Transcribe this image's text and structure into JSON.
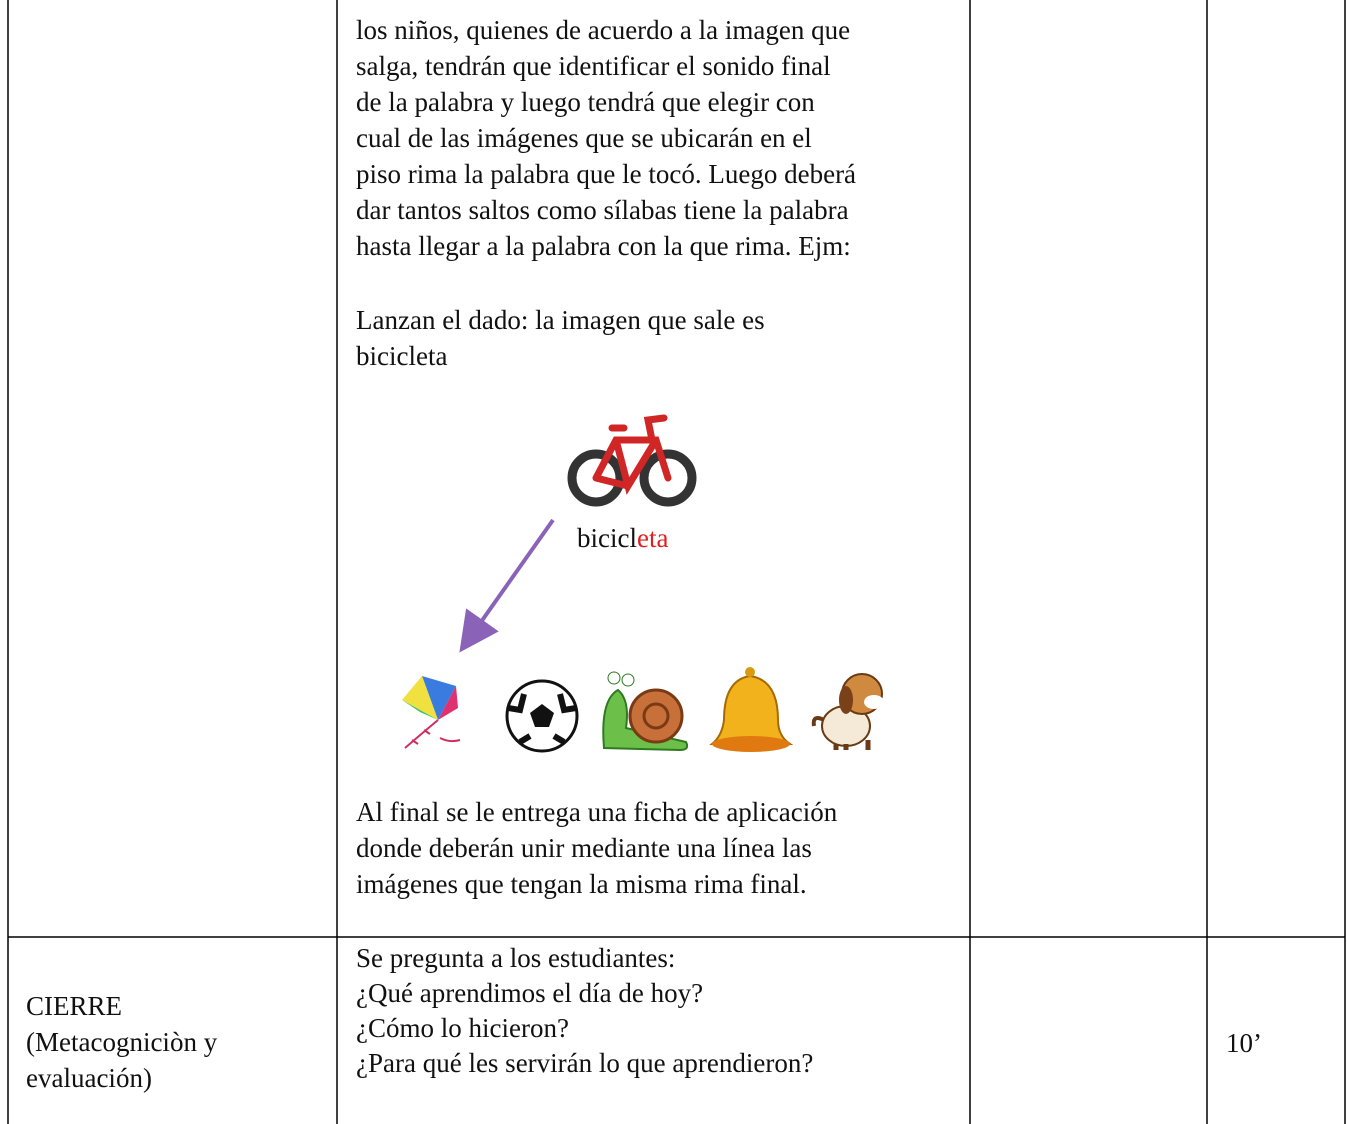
{
  "table": {
    "rows": [
      {
        "activity": {
          "lines_before": [
            "los niños, quienes de acuerdo a la imagen que",
            "salga, tendrán que identificar el sonido final",
            "de la palabra y luego tendrá que elegir con",
            "cual de las imágenes que se ubicarán en el",
            "piso rima la palabra que le tocó. Luego deberá",
            "dar tantos saltos como sílabas tiene la palabra",
            "hasta llegar a la palabra con la que rima. Ejm:"
          ],
          "example_lines": [
            "Lanzan el dado: la imagen que sale es",
            "bicicleta"
          ],
          "figure_label": {
            "stem": "bicicl",
            "ending": "eta"
          },
          "lines_after": [
            "Al final se le entrega una ficha de aplicación",
            "donde deberán unir mediante una línea las",
            "imágenes que tengan la misma rima final."
          ]
        }
      },
      {
        "stage": [
          "CIERRE",
          "(Metacogniciòn y",
          "evaluación)"
        ],
        "activity": {
          "lines": [
            "Se pregunta a los estudiantes:",
            "¿Qué aprendimos el día de hoy?",
            "¿Cómo lo hicieron?",
            "¿Para qué les servirán lo que aprendieron?"
          ]
        },
        "time": "10’"
      }
    ]
  }
}
